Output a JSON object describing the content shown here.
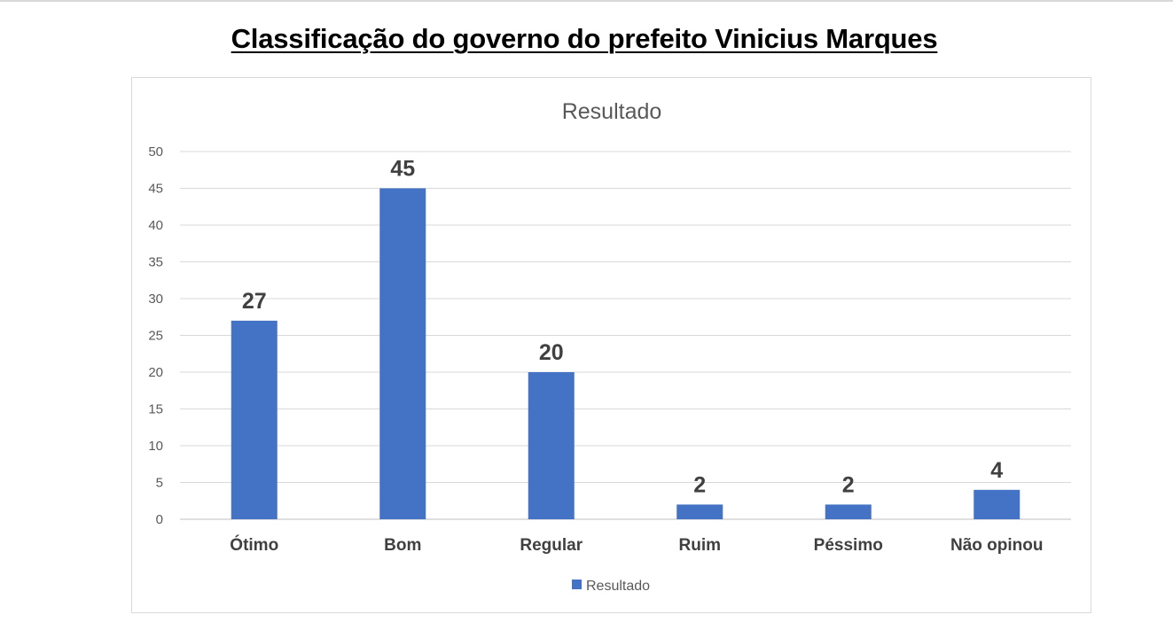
{
  "page": {
    "title": "Classificação do governo do prefeito Vinicius Marques"
  },
  "chart_data": {
    "type": "bar",
    "title": "Resultado",
    "categories": [
      "Ótimo",
      "Bom",
      "Regular",
      "Ruim",
      "Péssimo",
      "Não opinou"
    ],
    "series": [
      {
        "name": "Resultado",
        "values": [
          27,
          45,
          20,
          2,
          2,
          4
        ],
        "color": "#4472c4"
      }
    ],
    "ylim": [
      0,
      50
    ],
    "yticks": [
      0,
      5,
      10,
      15,
      20,
      25,
      30,
      35,
      40,
      45,
      50
    ],
    "grid": true,
    "legend": "bottom",
    "xlabel": "",
    "ylabel": ""
  }
}
